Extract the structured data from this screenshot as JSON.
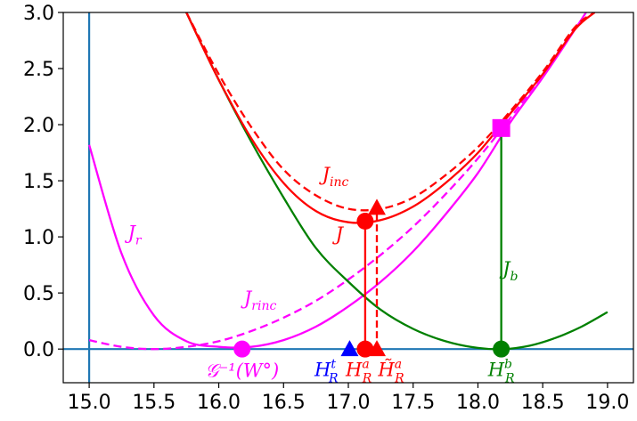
{
  "chart_data": {
    "type": "line",
    "xlim": [
      14.8,
      19.2
    ],
    "ylim": [
      -0.3,
      3.0
    ],
    "x_ticks": [
      "15.0",
      "15.5",
      "16.0",
      "16.5",
      "17.0",
      "17.5",
      "18.0",
      "18.5",
      "19.0"
    ],
    "y_ticks": [
      "0.0",
      "0.5",
      "1.0",
      "1.5",
      "2.0",
      "2.5",
      "3.0"
    ],
    "grid": false,
    "legend": "none",
    "series": [
      {
        "color": "#ff00ff",
        "dash": false,
        "x": [
          15.0,
          15.25,
          15.5,
          15.75,
          16.0,
          16.25,
          16.5,
          16.75,
          17.0,
          17.25,
          17.5,
          17.75,
          18.0,
          18.25,
          18.5,
          18.75,
          19.0
        ],
        "y": [
          1.82,
          0.85,
          0.3,
          0.07,
          0.02,
          0.02,
          0.08,
          0.2,
          0.38,
          0.6,
          0.87,
          1.2,
          1.57,
          2.02,
          2.42,
          2.85,
          3.3
        ]
      },
      {
        "color": "#ff00ff",
        "dash": true,
        "x": [
          15.0,
          15.25,
          15.5,
          15.75,
          16.0,
          16.25,
          16.5,
          16.75,
          17.0,
          17.25,
          17.5,
          17.75,
          18.0,
          18.25,
          18.5,
          18.75
        ],
        "y": [
          0.08,
          0.02,
          0.0,
          0.02,
          0.07,
          0.16,
          0.28,
          0.43,
          0.62,
          0.84,
          1.09,
          1.38,
          1.7,
          2.06,
          2.45,
          2.87
        ]
      },
      {
        "color": "#008000",
        "dash": false,
        "x": [
          15.75,
          16.0,
          16.25,
          16.5,
          16.75,
          17.0,
          17.25,
          17.5,
          17.75,
          18.0,
          18.2,
          18.4,
          18.6,
          18.8,
          19.0
        ],
        "y": [
          3.0,
          2.4,
          1.85,
          1.35,
          0.9,
          0.6,
          0.35,
          0.18,
          0.07,
          0.01,
          0.0,
          0.03,
          0.1,
          0.2,
          0.33
        ]
      },
      {
        "color": "#ff0000",
        "dash": false,
        "x": [
          15.75,
          16.0,
          16.25,
          16.5,
          16.75,
          17.0,
          17.25,
          17.5,
          17.75,
          18.0,
          18.25,
          18.5,
          18.75,
          18.9
        ],
        "y": [
          3.0,
          2.4,
          1.88,
          1.48,
          1.23,
          1.13,
          1.15,
          1.27,
          1.48,
          1.75,
          2.1,
          2.45,
          2.85,
          3.0
        ]
      },
      {
        "color": "#ff0000",
        "dash": true,
        "x": [
          15.75,
          16.0,
          16.25,
          16.5,
          16.75,
          17.0,
          17.25,
          17.5,
          17.75,
          18.0,
          18.25,
          18.5,
          18.75,
          18.9
        ],
        "y": [
          3.0,
          2.45,
          1.98,
          1.6,
          1.37,
          1.25,
          1.25,
          1.35,
          1.55,
          1.8,
          2.12,
          2.47,
          2.87,
          3.0
        ]
      }
    ],
    "vlines": [
      {
        "x": 17.13,
        "y0": 0.0,
        "y1": 1.14,
        "color": "#ff0000",
        "dash": false
      },
      {
        "x": 17.22,
        "y0": 0.0,
        "y1": 1.26,
        "color": "#ff0000",
        "dash": true
      },
      {
        "x": 18.18,
        "y0": 0.0,
        "y1": 1.97,
        "color": "#008000",
        "dash": false
      }
    ],
    "axis_lines": {
      "horizontal_y": 0.0,
      "vertical_x": 15.0,
      "color": "#1f77b4"
    },
    "markers": [
      {
        "x": 16.18,
        "y": 0.0,
        "shape": "circle",
        "color": "#ff00ff"
      },
      {
        "x": 17.01,
        "y": 0.0,
        "shape": "triangle",
        "color": "#0000ff"
      },
      {
        "x": 17.13,
        "y": 0.0,
        "shape": "circle",
        "color": "#ff0000"
      },
      {
        "x": 17.22,
        "y": 0.0,
        "shape": "triangle",
        "color": "#ff0000"
      },
      {
        "x": 17.13,
        "y": 1.14,
        "shape": "circle",
        "color": "#ff0000"
      },
      {
        "x": 17.22,
        "y": 1.26,
        "shape": "triangle",
        "color": "#ff0000"
      },
      {
        "x": 18.18,
        "y": 0.0,
        "shape": "circle",
        "color": "#008000"
      },
      {
        "x": 18.18,
        "y": 1.97,
        "shape": "square",
        "color": "#ff00ff"
      }
    ],
    "annotations": [
      {
        "id": "jr",
        "base": "J",
        "sub": "r",
        "color": "#ff00ff",
        "x": 15.35,
        "y": 0.98
      },
      {
        "id": "jrinc",
        "base": "J",
        "sub": "rinc",
        "color": "#ff00ff",
        "x": 16.32,
        "y": 0.4
      },
      {
        "id": "jinc",
        "base": "J",
        "sub": "inc",
        "color": "#ff0000",
        "x": 16.9,
        "y": 1.5
      },
      {
        "id": "j",
        "base": "J",
        "color": "#ff0000",
        "x": 16.93,
        "y": 0.97
      },
      {
        "id": "jb",
        "base": "J",
        "sub": "b",
        "color": "#008000",
        "x": 18.25,
        "y": 0.66
      },
      {
        "id": "ginv",
        "text": "𝒢⁻¹(W°)",
        "color": "#ff00ff",
        "x": 16.18,
        "y": -0.25
      },
      {
        "id": "hrt",
        "base": "H",
        "sub": "R",
        "sup": "t",
        "color": "#0000ff",
        "x": 16.83,
        "y": -0.24
      },
      {
        "id": "hra",
        "base": "H",
        "sub": "R",
        "sup": "a",
        "color": "#ff0000",
        "x": 17.08,
        "y": -0.24
      },
      {
        "id": "hrat",
        "base": "H̃",
        "sub": "R",
        "sup": "a",
        "color": "#ff0000",
        "x": 17.33,
        "y": -0.24
      },
      {
        "id": "hrb",
        "base": "H",
        "sub": "R",
        "sup": "b",
        "color": "#008000",
        "x": 18.18,
        "y": -0.24
      }
    ]
  }
}
